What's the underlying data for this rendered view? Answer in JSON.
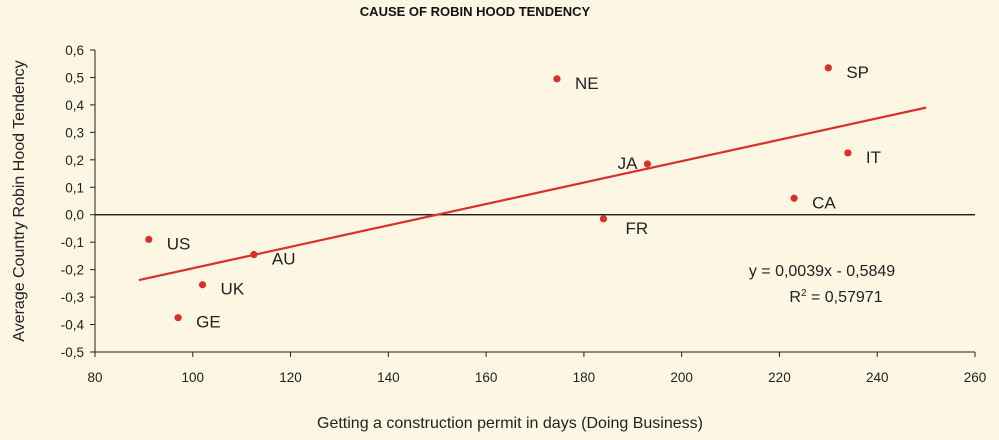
{
  "chart_data": {
    "type": "scatter",
    "title": "CAUSE OF ROBIN HOOD TENDENCY",
    "xlabel": "Getting a construction permit in days (Doing Business)",
    "ylabel": "Average Country Robin Hood Tendency",
    "xlim": [
      80,
      260
    ],
    "ylim": [
      -0.5,
      0.6
    ],
    "x_ticks": [
      "80",
      "100",
      "120",
      "140",
      "160",
      "180",
      "200",
      "220",
      "240",
      "260"
    ],
    "y_ticks": [
      "-0,5",
      "-0,4",
      "-0,3",
      "-0,2",
      "-0,1",
      "0,0",
      "0,1",
      "0,2",
      "0,3",
      "0,4",
      "0,5",
      "0,6"
    ],
    "grid": false,
    "points": [
      {
        "label": "US",
        "x": 91,
        "y": -0.09
      },
      {
        "label": "AU",
        "x": 112.5,
        "y": -0.145
      },
      {
        "label": "UK",
        "x": 102,
        "y": -0.255
      },
      {
        "label": "GE",
        "x": 97,
        "y": -0.375
      },
      {
        "label": "NE",
        "x": 174.5,
        "y": 0.495
      },
      {
        "label": "JA",
        "x": 193,
        "y": 0.185
      },
      {
        "label": "FR",
        "x": 184,
        "y": -0.015
      },
      {
        "label": "SP",
        "x": 230,
        "y": 0.535
      },
      {
        "label": "IT",
        "x": 234,
        "y": 0.225
      },
      {
        "label": "CA",
        "x": 223,
        "y": 0.06
      }
    ],
    "trendline": {
      "slope": 0.0039,
      "intercept": -0.5849,
      "x_start": 89,
      "x_end": 250,
      "equation": "y = 0,0039x - 0,5849",
      "r2_prefix": "R",
      "r2_sup": "2",
      "r2_value": " = 0,57971"
    },
    "colors": {
      "points": "#d9302b",
      "trendline": "#d9302b",
      "zero_line": "#000000",
      "background": "#fdf6e3"
    }
  }
}
